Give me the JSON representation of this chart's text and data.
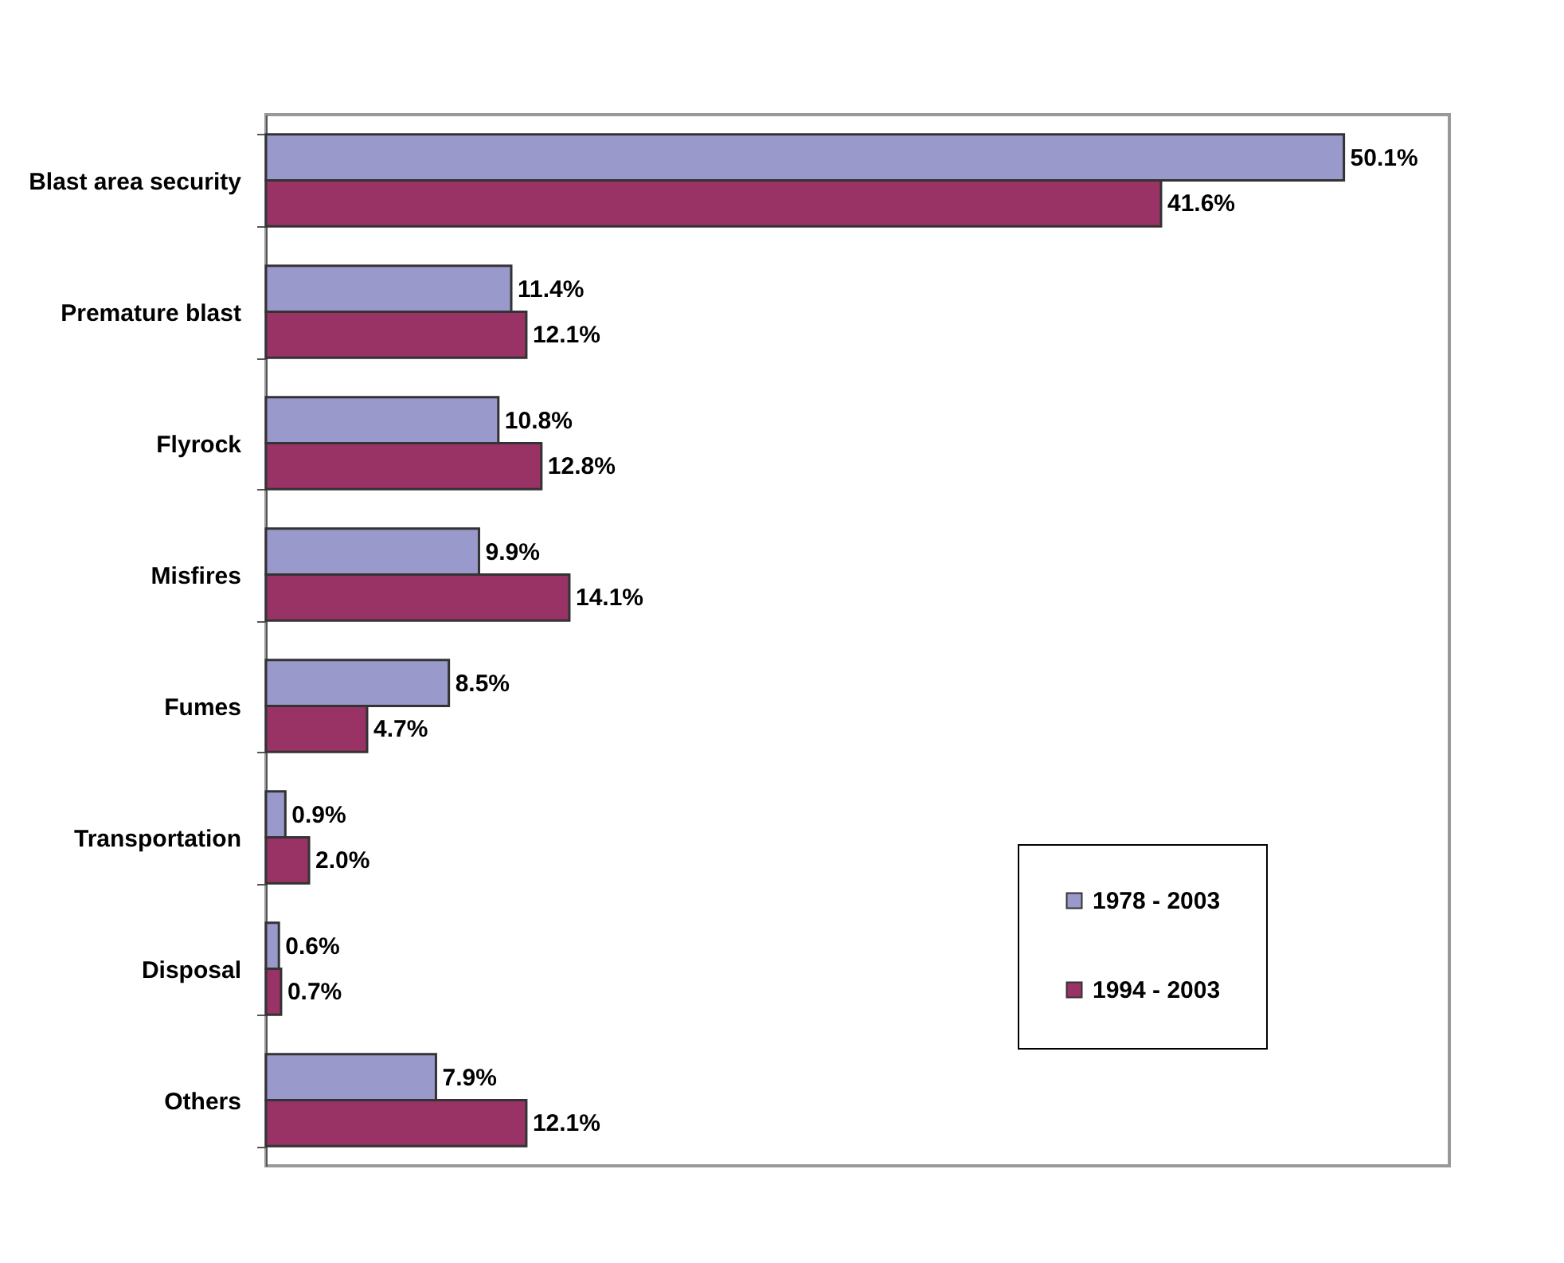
{
  "chart_data": {
    "type": "bar",
    "orientation": "horizontal",
    "categories": [
      "Blast area security",
      "Premature blast",
      "Flyrock",
      "Misfires",
      "Fumes",
      "Transportation",
      "Disposal",
      "Others"
    ],
    "series": [
      {
        "name": "1978 - 2003",
        "color": "#9999cc",
        "values": [
          50.1,
          11.4,
          10.8,
          9.9,
          8.5,
          0.9,
          0.6,
          7.9
        ],
        "value_labels": [
          "50.1%",
          "11.4%",
          "10.8%",
          "9.9%",
          "8.5%",
          "0.9%",
          "0.6%",
          "7.9%"
        ]
      },
      {
        "name": "1994 - 2003",
        "color": "#993366",
        "values": [
          41.6,
          12.1,
          12.8,
          14.1,
          4.7,
          2.0,
          0.7,
          12.1
        ],
        "value_labels": [
          "41.6%",
          "12.1%",
          "12.8%",
          "14.1%",
          "4.7%",
          "2.0%",
          "0.7%",
          "12.1%"
        ]
      }
    ],
    "legend": "bottom right"
  }
}
